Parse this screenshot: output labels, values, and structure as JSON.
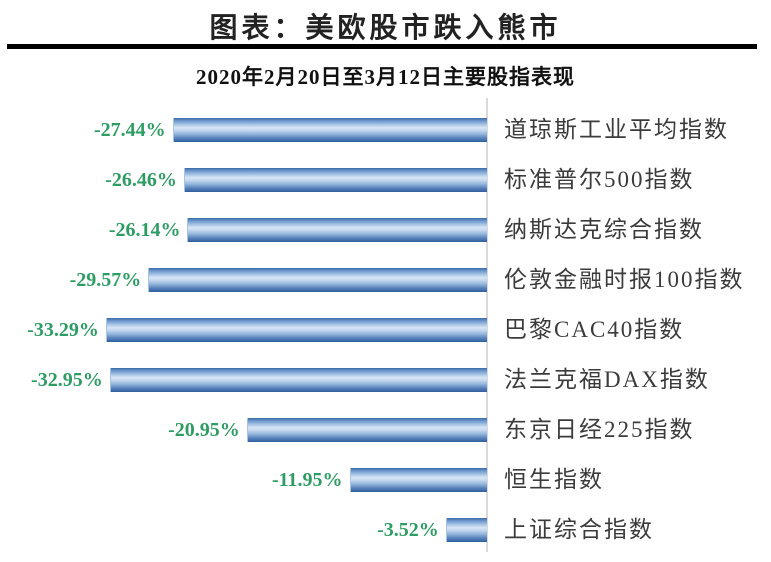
{
  "page": {
    "title": "图表：美欧股市跌入熊市",
    "subtitle": "2020年2月20日至3月12日主要股指表现"
  },
  "chart_data": {
    "type": "bar",
    "orientation": "horizontal",
    "title": "2020年2月20日至3月12日主要股指表现",
    "categories": [
      "道琼斯工业平均指数",
      "标准普尔500指数",
      "纳斯达克综合指数",
      "伦敦金融时报100指数",
      "巴黎CAC40指数",
      "法兰克福DAX指数",
      "东京日经225指数",
      "恒生指数",
      "上证综合指数"
    ],
    "values": [
      -27.44,
      -26.46,
      -26.14,
      -29.57,
      -33.29,
      -32.95,
      -20.95,
      -11.95,
      -3.52
    ],
    "value_labels": [
      "-27.44%",
      "-26.46%",
      "-26.14%",
      "-29.57%",
      "-33.29%",
      "-32.95%",
      "-20.95%",
      "-11.95%",
      "-3.52%"
    ],
    "xlabel": "",
    "ylabel": "",
    "xlim": [
      -35,
      0
    ],
    "grid": false,
    "legend": "none",
    "bar_gradient": [
      "#2f5f9d",
      "#d8e6f5"
    ],
    "value_label_color": "#2e9d64",
    "category_label_color": "#3b3b3b",
    "axis_line_color": "#d9d9d9"
  }
}
